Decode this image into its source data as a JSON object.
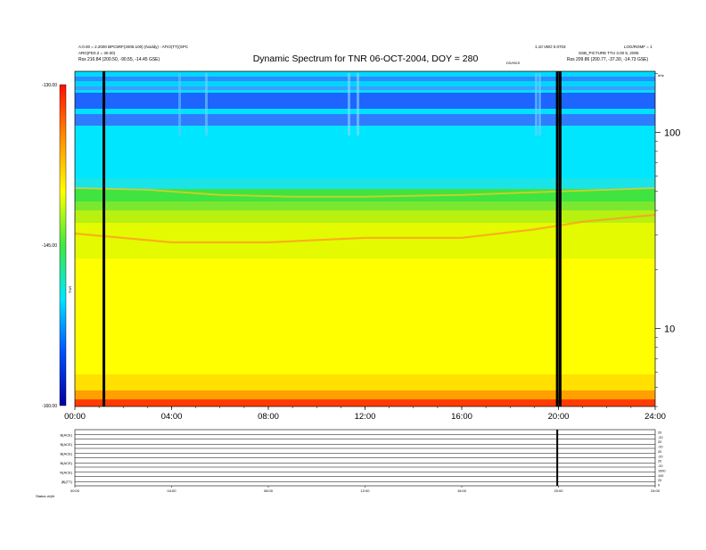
{
  "chart_data": {
    "type": "heatmap",
    "title": "Dynamic Spectrum for TNR 06-OCT-2004, DOY = 280",
    "x": {
      "ticks": [
        "00:00",
        "04:00",
        "08:00",
        "12:00",
        "16:00",
        "20:00",
        "24:00"
      ],
      "range_hours": [
        0,
        24
      ]
    },
    "y": {
      "scale": "log",
      "tick_labels": [
        "100",
        "10"
      ],
      "tick_values": [
        100,
        10
      ],
      "range": [
        4.0,
        205.0
      ],
      "unit_label": "kHz"
    },
    "colorbar": {
      "tick_labels": [
        "-130.00",
        "-145.00",
        "-160.00"
      ],
      "tick_values": [
        -130,
        -145,
        -160
      ],
      "range": [
        -160,
        -130
      ],
      "label": "TNR",
      "stops": [
        "#0000a0",
        "#0050ff",
        "#00e6ff",
        "#40e840",
        "#ffff00",
        "#ff9000",
        "#ff1000"
      ]
    },
    "data_gaps_hours": [
      1.2,
      19.95,
      20.07
    ],
    "header": {
      "left_line1": "A:0.00 = 2.2000 BPC5RF(2005:100) (Noddy) - ATIO(TT)(SPC",
      "left_line2": "ARG(FE0.2 = 30.00)",
      "left_line3": "Rss    216.84 (200.50, -90.55, -14.45 GSE)",
      "right_line1": "1.10 VBO 0.0703",
      "right_line2": "LOG/ROMF = 1",
      "right_line3": "SSB_PICTURE TTU 3.00 5, 2005",
      "right_line4": "Rss    209.86 (200.77, -37.30, -14.73 GSE)",
      "mid_tag": "DS/HDS"
    }
  },
  "bottom_panel": {
    "row_labels": [
      "B(ACE)",
      "B(ACE)",
      "B(ACE)",
      "B(ACE)",
      "N(ACE)",
      "|B|(TT)"
    ],
    "right_labels": [
      "20",
      "-20",
      "20",
      "-20",
      "20",
      "-20",
      "20",
      "-20",
      "1000",
      "100",
      "20",
      "0"
    ],
    "x_ticks": [
      "00:00",
      "04:00",
      "08:00",
      "12:00",
      "16:00",
      "20:00",
      "24:00"
    ],
    "footer": "Status   cb)/b"
  }
}
